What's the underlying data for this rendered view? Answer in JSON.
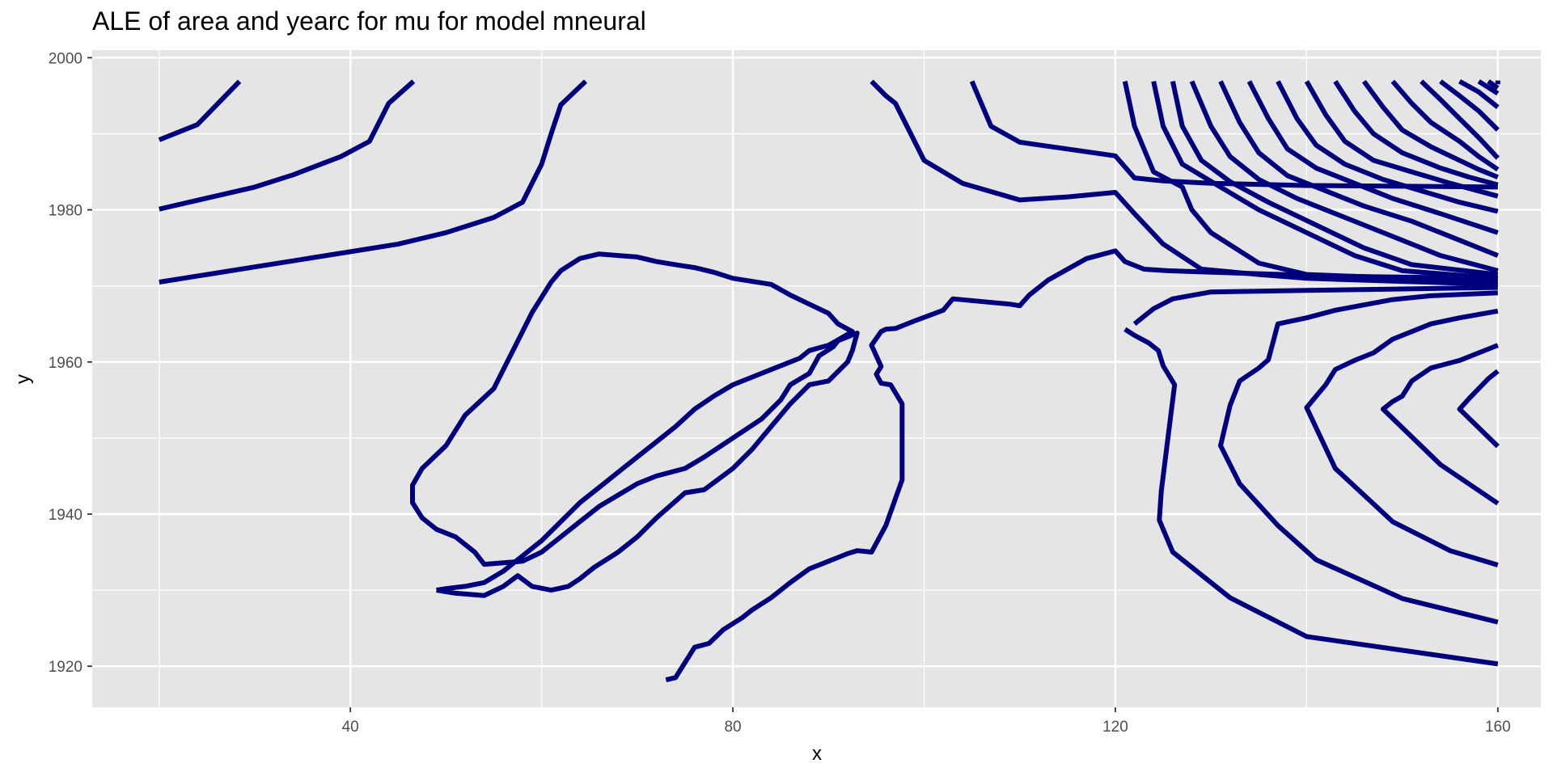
{
  "chart_data": {
    "type": "line",
    "title": "ALE of area and yearc for mu for model mneural",
    "xlabel": "x",
    "ylabel": "y",
    "xlim": [
      13,
      164.5
    ],
    "ylim": [
      1914.6,
      2001
    ],
    "x_ticks": [
      40,
      80,
      120,
      160
    ],
    "y_ticks": [
      1920,
      1940,
      1960,
      1980,
      2000
    ],
    "x_minor": [
      20,
      60,
      100,
      140
    ],
    "y_minor": [
      1930,
      1950,
      1970,
      1990
    ],
    "grid": true,
    "panel_color": "#e5e5e5",
    "grid_color": "#ffffff",
    "line_color": "#00007f",
    "series": [
      {
        "x": [
          20,
          24,
          28.4
        ],
        "y": [
          1989.2,
          1991.2,
          1996.9
        ]
      },
      {
        "x": [
          20,
          30,
          34,
          39,
          42,
          44,
          46.6
        ],
        "y": [
          1980.1,
          1983,
          1984.6,
          1987,
          1989,
          1994,
          1996.9
        ]
      },
      {
        "x": [
          20,
          25,
          30,
          35,
          40,
          45,
          50,
          55,
          58,
          60,
          61,
          62,
          63,
          64.6
        ],
        "y": [
          1970.5,
          1971.5,
          1972.5,
          1973.5,
          1974.5,
          1975.5,
          1977,
          1979,
          1981,
          1986,
          1990,
          1993.8,
          1995,
          1996.9
        ]
      },
      {
        "x": [
          49,
          51,
          54,
          56,
          57.5,
          59,
          61,
          62.8,
          64,
          65.5,
          68,
          70,
          72,
          75,
          77,
          80,
          82,
          84,
          86,
          88,
          90,
          92,
          92.5,
          93,
          91,
          90.5,
          89,
          88,
          86,
          85,
          83,
          80,
          77,
          75,
          72,
          70,
          68,
          66,
          64,
          62,
          60,
          58,
          56,
          54,
          53,
          51,
          49,
          47.5,
          46.5,
          46.5,
          47.5,
          50,
          52,
          55,
          56,
          57,
          58,
          59,
          60,
          61,
          62,
          64,
          66,
          68,
          70,
          72,
          74,
          76,
          78,
          80,
          82,
          84,
          86,
          88,
          90,
          91,
          92.5,
          91,
          90,
          88,
          87,
          86,
          84,
          82,
          80,
          78,
          76,
          74,
          72,
          70,
          68,
          66,
          64,
          62,
          60,
          58,
          56,
          54,
          52,
          50,
          49
        ],
        "y": [
          1930,
          1929.6,
          1929.3,
          1930.5,
          1931.9,
          1930.5,
          1930,
          1930.5,
          1931.5,
          1933,
          1935,
          1937,
          1939.5,
          1942.8,
          1943.2,
          1946,
          1948.5,
          1951.5,
          1954.5,
          1957,
          1957.5,
          1960,
          1961.5,
          1963.8,
          1962.8,
          1962,
          1960.8,
          1958.5,
          1957,
          1955,
          1952.5,
          1950,
          1947.5,
          1946,
          1945,
          1944,
          1942.5,
          1941,
          1939,
          1937,
          1935,
          1933.8,
          1933.6,
          1933.4,
          1935,
          1937,
          1938,
          1939.5,
          1941.5,
          1943.8,
          1946,
          1949,
          1953,
          1956.5,
          1959,
          1961.5,
          1964,
          1966.5,
          1968.5,
          1970.5,
          1972,
          1973.6,
          1974.2,
          1974,
          1973.8,
          1973.2,
          1972.8,
          1972.4,
          1971.8,
          1971,
          1970.6,
          1970.2,
          1968.8,
          1967.6,
          1966.4,
          1965,
          1964,
          1962.9,
          1962.2,
          1961.5,
          1960.5,
          1960,
          1959,
          1958,
          1957,
          1955.5,
          1953.8,
          1951.5,
          1949.5,
          1947.5,
          1945.5,
          1943.5,
          1941.5,
          1939,
          1936.5,
          1934.5,
          1932.5,
          1931,
          1930.5,
          1930.2,
          1930
        ]
      },
      {
        "x": [
          73,
          74,
          75,
          76,
          77.5,
          79,
          81,
          82,
          84,
          86,
          88,
          90,
          91,
          92,
          93,
          94.5,
          96,
          97.7,
          97.7,
          96.5,
          95.5,
          95,
          95.5,
          94.5,
          95.5,
          96,
          97,
          99,
          102,
          103,
          109,
          110,
          111,
          113,
          115,
          117,
          120,
          121,
          123,
          125.4,
          130,
          135,
          140,
          147,
          160
        ],
        "y": [
          1918.2,
          1918.5,
          1920.5,
          1922.5,
          1923,
          1924.8,
          1926.4,
          1927.4,
          1929,
          1931,
          1932.8,
          1933.8,
          1934.3,
          1934.8,
          1935.2,
          1935,
          1938.5,
          1944.5,
          1954.5,
          1957,
          1957.2,
          1958.4,
          1959.4,
          1962.2,
          1964,
          1964.3,
          1964.4,
          1965.4,
          1966.8,
          1968.3,
          1967.6,
          1967.4,
          1968.8,
          1970.8,
          1972.2,
          1973.6,
          1974.6,
          1973.2,
          1972.2,
          1972,
          1971.8,
          1971.6,
          1971.4,
          1971.2,
          1971
        ]
      },
      {
        "x": [
          94.5,
          96,
          97,
          98,
          100,
          104,
          110,
          115,
          120,
          122,
          125,
          129,
          135,
          140,
          150,
          160
        ],
        "y": [
          1996.9,
          1995,
          1994,
          1991.5,
          1986.5,
          1983.5,
          1981.3,
          1981.7,
          1982.3,
          1979.5,
          1975.5,
          1972.2,
          1971.5,
          1971,
          1970.6,
          1970.2
        ]
      },
      {
        "x": [
          105,
          107,
          110,
          120,
          122,
          125,
          130,
          140,
          150,
          160
        ],
        "y": [
          1996.9,
          1991,
          1988.9,
          1987.1,
          1984.2,
          1983.8,
          1983.5,
          1983.2,
          1983.1,
          1983
        ]
      },
      {
        "x": [
          122,
          124,
          126,
          130,
          135,
          140,
          145,
          150,
          155,
          160
        ],
        "y": [
          1965,
          1967,
          1968.3,
          1969.2,
          1969.3,
          1969.4,
          1969.5,
          1969.6,
          1969.7,
          1969.8
        ]
      },
      {
        "x": [
          121,
          122,
          124,
          127,
          128,
          130,
          135,
          140,
          150,
          160
        ],
        "y": [
          1996.9,
          1991,
          1985,
          1983,
          1980,
          1977,
          1973,
          1971.5,
          1971,
          1970.6
        ]
      },
      {
        "x": [
          124,
          125,
          127,
          131,
          135,
          140,
          145,
          150,
          160
        ],
        "y": [
          1996.9,
          1991,
          1986,
          1983,
          1980,
          1977,
          1974,
          1972,
          1971
        ]
      },
      {
        "x": [
          126,
          127,
          129,
          132,
          136,
          141,
          146,
          151,
          160
        ],
        "y": [
          1996.9,
          1991,
          1986.5,
          1983.7,
          1981,
          1978,
          1975,
          1972.8,
          1971.5
        ]
      },
      {
        "x": [
          128,
          130,
          132,
          135,
          139,
          144,
          149,
          154,
          160
        ],
        "y": [
          1996.9,
          1991,
          1987,
          1984,
          1981.5,
          1979,
          1976.5,
          1974,
          1972
        ]
      },
      {
        "x": [
          131,
          133,
          135,
          138,
          142,
          146,
          151,
          156,
          160
        ],
        "y": [
          1996.9,
          1991.5,
          1987.5,
          1984.5,
          1982.5,
          1980.5,
          1978.5,
          1976,
          1974
        ]
      },
      {
        "x": [
          134,
          136,
          138,
          141,
          145,
          149,
          154,
          160
        ],
        "y": [
          1996.9,
          1992,
          1988,
          1985.5,
          1983.5,
          1981.5,
          1979.5,
          1977
        ]
      },
      {
        "x": [
          137,
          139,
          141,
          144,
          148,
          152,
          156,
          160
        ],
        "y": [
          1996.9,
          1992,
          1988.5,
          1986,
          1984,
          1982.5,
          1981,
          1979.8
        ]
      },
      {
        "x": [
          140,
          142,
          144,
          147,
          151,
          155,
          160
        ],
        "y": [
          1996.9,
          1992.5,
          1989,
          1986.5,
          1985,
          1983.5,
          1981.8
        ]
      },
      {
        "x": [
          143,
          145,
          147,
          150,
          154,
          157,
          160
        ],
        "y": [
          1996.9,
          1993,
          1990,
          1987.5,
          1985.5,
          1984.3,
          1983.3
        ]
      },
      {
        "x": [
          146,
          148,
          150,
          153,
          156,
          158,
          160
        ],
        "y": [
          1996.9,
          1993.5,
          1990.5,
          1988.3,
          1986.5,
          1985.3,
          1984.3
        ]
      },
      {
        "x": [
          149,
          151,
          153,
          156,
          158,
          160
        ],
        "y": [
          1996.9,
          1994,
          1991.5,
          1989,
          1987,
          1985.3
        ]
      },
      {
        "x": [
          152,
          154,
          156,
          158,
          160
        ],
        "y": [
          1996.9,
          1994.5,
          1992,
          1989.5,
          1986.8
        ]
      },
      {
        "x": [
          154,
          156,
          158,
          160
        ],
        "y": [
          1996.9,
          1995,
          1993,
          1990.5
        ]
      },
      {
        "x": [
          156,
          158,
          160
        ],
        "y": [
          1996.9,
          1995.5,
          1993.5
        ]
      },
      {
        "x": [
          158,
          160
        ],
        "y": [
          1996.9,
          1995.3
        ]
      },
      {
        "x": [
          159,
          160
        ],
        "y": [
          1996.9,
          1996
        ]
      },
      {
        "x": [
          160,
          160
        ],
        "y": [
          1997,
          1996.5
        ]
      },
      {
        "x": [
          160,
          140,
          132,
          126,
          124.6,
          124.8,
          125.2,
          125.6,
          126.2,
          125,
          124.5,
          123.5,
          122,
          121
        ],
        "y": [
          1920.3,
          1923.9,
          1929,
          1935,
          1939.2,
          1943,
          1947,
          1951,
          1957,
          1959.5,
          1961.5,
          1962.5,
          1963.5,
          1964.3
        ]
      },
      {
        "x": [
          160,
          150,
          141,
          137,
          133,
          131,
          132,
          133,
          135,
          136,
          137,
          140,
          143,
          149,
          153,
          160
        ],
        "y": [
          1925.8,
          1928.9,
          1934,
          1938.5,
          1944,
          1949,
          1954.3,
          1957.5,
          1959.2,
          1960.3,
          1965,
          1965.8,
          1966.8,
          1968.2,
          1968.7,
          1969.1
        ]
      },
      {
        "x": [
          160,
          155,
          149,
          143,
          140,
          141,
          142,
          143,
          145,
          147,
          149,
          151,
          153,
          156,
          160
        ],
        "y": [
          1933.3,
          1935.2,
          1939,
          1946,
          1954,
          1955.5,
          1957,
          1959,
          1960.2,
          1961.2,
          1963,
          1964,
          1965,
          1965.8,
          1966.7
        ]
      },
      {
        "x": [
          160,
          154,
          148,
          149,
          150,
          151,
          153,
          156,
          158,
          160
        ],
        "y": [
          1941.4,
          1946.5,
          1953.8,
          1954.8,
          1955.5,
          1957.5,
          1959.2,
          1960.2,
          1961.2,
          1962.2
        ]
      },
      {
        "x": [
          160,
          156,
          157,
          158,
          159,
          160
        ],
        "y": [
          1948.9,
          1953.8,
          1955.2,
          1956.5,
          1957.8,
          1958.8
        ]
      }
    ]
  }
}
